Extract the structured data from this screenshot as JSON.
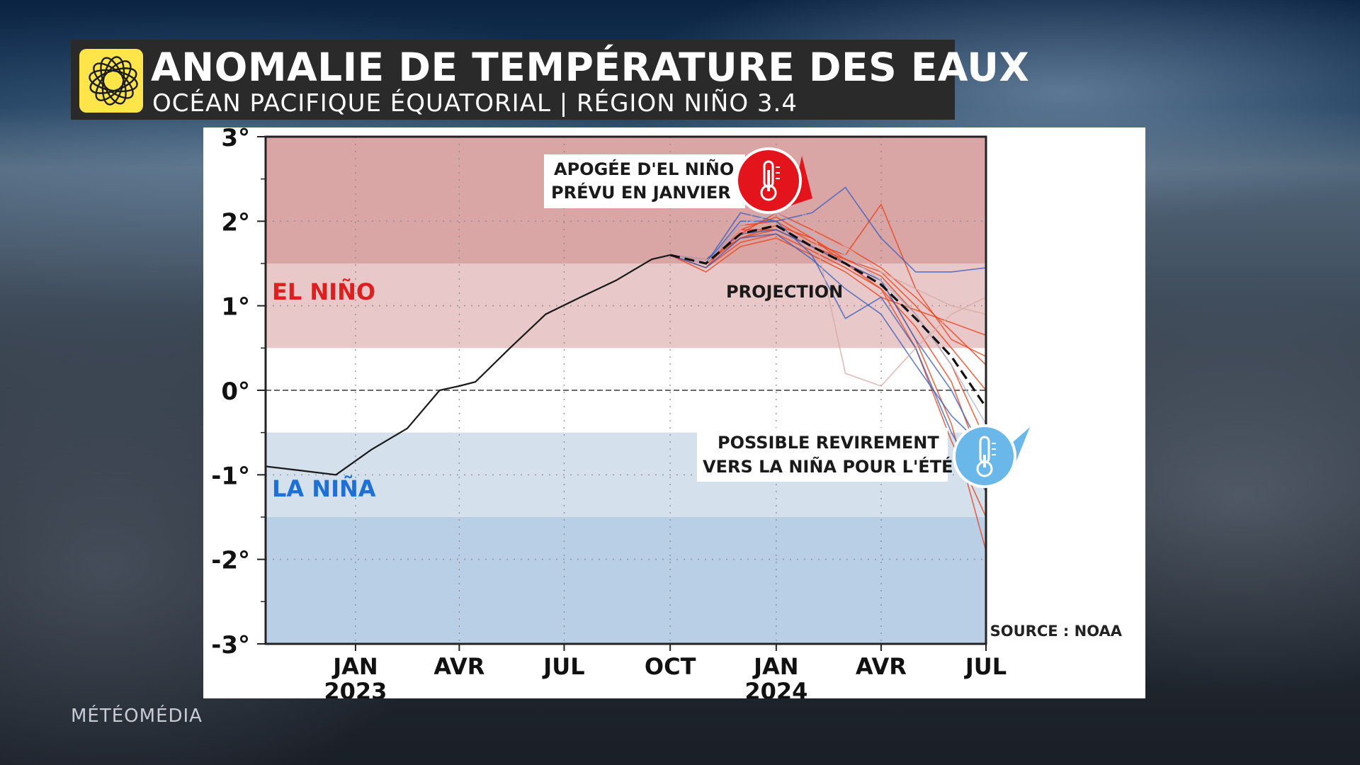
{
  "header": {
    "title": "ANOMALIE DE TEMPÉRATURE DES EAUX",
    "subtitle": "OCÉAN PACIFIQUE ÉQUATORIAL | RÉGION NIÑO 3.4"
  },
  "brand": "MÉTÉOMÉDIA",
  "annotations": {
    "peak_line1": "APOGÉE D'EL NIÑO",
    "peak_line2": "PRÉVU EN JANVIER",
    "shift_line1": "POSSIBLE REVIREMENT",
    "shift_line2": "VERS LA NIÑA POUR L'ÉTÉ"
  },
  "chart_data": {
    "type": "line",
    "ylabel": "",
    "xlabel": "",
    "ylim": [
      -3,
      3
    ],
    "xlim": [
      "2022-10-15",
      "2024-07-01"
    ],
    "yticks": [
      {
        "value": 3,
        "label": "3°"
      },
      {
        "value": 2,
        "label": "2°"
      },
      {
        "value": 1,
        "label": "1°"
      },
      {
        "value": 0,
        "label": "0°"
      },
      {
        "value": -1,
        "label": "-1°"
      },
      {
        "value": -2,
        "label": "-2°"
      },
      {
        "value": -3,
        "label": "-3°"
      }
    ],
    "xticks": [
      {
        "date": "2023-01-01",
        "label": "JAN",
        "year": "2023"
      },
      {
        "date": "2023-04-01",
        "label": "AVR",
        "year": ""
      },
      {
        "date": "2023-07-01",
        "label": "JUL",
        "year": ""
      },
      {
        "date": "2023-10-01",
        "label": "OCT",
        "year": ""
      },
      {
        "date": "2024-01-01",
        "label": "JAN",
        "year": "2024"
      },
      {
        "date": "2024-04-01",
        "label": "AVR",
        "year": ""
      },
      {
        "date": "2024-07-01",
        "label": "JUL",
        "year": ""
      }
    ],
    "bands": [
      {
        "label": "EL NIÑO",
        "from": 0.5,
        "to": 3,
        "color": "#e8c8c8",
        "label_color": "#dd1f1f",
        "strong_from": 1.5,
        "strong_color": "#d9a5a5"
      },
      {
        "label": "LA NIÑA",
        "from": -3,
        "to": -0.5,
        "color": "#d4e0ec",
        "label_color": "#1e6fd6",
        "strong_to": -1.5,
        "strong_color": "#b8cfe6"
      }
    ],
    "projection_label": "PROJECTION",
    "source": "SOURCE : NOAA",
    "observed": {
      "x": [
        "2022-10-15",
        "2022-11-15",
        "2022-12-15",
        "2023-01-15",
        "2023-02-15",
        "2023-03-15",
        "2023-04-01",
        "2023-04-15",
        "2023-05-15",
        "2023-06-15",
        "2023-07-15",
        "2023-08-15",
        "2023-09-15",
        "2023-10-01"
      ],
      "y": [
        -0.9,
        -0.95,
        -1.0,
        -0.7,
        -0.45,
        0.0,
        0.05,
        0.1,
        0.5,
        0.9,
        1.1,
        1.3,
        1.55,
        1.6
      ]
    },
    "ensemble_mean": {
      "x": [
        "2023-10-01",
        "2023-11-01",
        "2023-12-01",
        "2024-01-01",
        "2024-02-01",
        "2024-03-01",
        "2024-04-01",
        "2024-05-01",
        "2024-06-01",
        "2024-07-01"
      ],
      "y": [
        1.6,
        1.5,
        1.85,
        1.95,
        1.7,
        1.5,
        1.25,
        0.85,
        0.4,
        -0.2
      ]
    },
    "members": [
      {
        "color": "#e8431d",
        "x": [
          "2023-10-01",
          "2023-11-01",
          "2023-12-01",
          "2024-01-01",
          "2024-02-01",
          "2024-03-01",
          "2024-04-01",
          "2024-05-01",
          "2024-06-01",
          "2024-07-01"
        ],
        "y": [
          1.6,
          1.5,
          1.9,
          2.05,
          1.8,
          1.55,
          1.35,
          0.9,
          0.3,
          -0.6
        ]
      },
      {
        "color": "#e8431d",
        "x": [
          "2023-10-01",
          "2023-11-01",
          "2023-12-01",
          "2024-01-01",
          "2024-02-01",
          "2024-03-01",
          "2024-04-01",
          "2024-05-01",
          "2024-06-01",
          "2024-07-01"
        ],
        "y": [
          1.6,
          1.45,
          1.75,
          1.85,
          1.65,
          1.45,
          1.2,
          0.75,
          0.1,
          -1.0
        ]
      },
      {
        "color": "#e8431d",
        "x": [
          "2023-10-01",
          "2023-11-01",
          "2023-12-01",
          "2024-01-01",
          "2024-02-01",
          "2024-03-01",
          "2024-04-01",
          "2024-05-01",
          "2024-06-01",
          "2024-07-01"
        ],
        "y": [
          1.6,
          1.5,
          1.95,
          2.0,
          1.75,
          1.6,
          2.2,
          1.2,
          0.6,
          0.4
        ]
      },
      {
        "color": "#e8431d",
        "x": [
          "2023-10-01",
          "2023-11-01",
          "2023-12-01",
          "2024-01-01",
          "2024-02-01",
          "2024-03-01",
          "2024-04-01",
          "2024-05-01",
          "2024-06-01",
          "2024-07-01"
        ],
        "y": [
          1.6,
          1.55,
          1.8,
          1.9,
          1.7,
          1.5,
          1.3,
          0.6,
          -0.4,
          -1.9
        ]
      },
      {
        "color": "#e8431d",
        "x": [
          "2023-10-01",
          "2023-11-01",
          "2023-12-01",
          "2024-01-01",
          "2024-02-01",
          "2024-03-01",
          "2024-04-01",
          "2024-05-01",
          "2024-06-01",
          "2024-07-01"
        ],
        "y": [
          1.6,
          1.4,
          1.7,
          1.8,
          1.6,
          1.4,
          1.1,
          0.95,
          0.8,
          0.65
        ]
      },
      {
        "color": "#e8431d",
        "x": [
          "2023-10-01",
          "2023-11-01",
          "2023-12-01",
          "2024-01-01",
          "2024-02-01",
          "2024-03-01",
          "2024-04-01",
          "2024-05-01",
          "2024-06-01",
          "2024-07-01"
        ],
        "y": [
          1.6,
          1.5,
          1.85,
          2.1,
          1.9,
          1.7,
          1.45,
          1.1,
          0.7,
          0.3
        ]
      },
      {
        "color": "#e8431d",
        "x": [
          "2023-10-01",
          "2023-11-01",
          "2023-12-01",
          "2024-01-01",
          "2024-02-01",
          "2024-03-01",
          "2024-04-01",
          "2024-05-01",
          "2024-06-01",
          "2024-07-01"
        ],
        "y": [
          1.6,
          1.5,
          1.8,
          1.95,
          1.8,
          1.5,
          1.2,
          0.5,
          -0.6,
          -1.5
        ]
      },
      {
        "color": "#e8431d",
        "x": [
          "2023-10-01",
          "2023-11-01",
          "2023-12-01",
          "2024-01-01",
          "2024-02-01",
          "2024-03-01",
          "2024-04-01",
          "2024-05-01",
          "2024-06-01",
          "2024-07-01"
        ],
        "y": [
          1.6,
          1.45,
          1.9,
          1.9,
          1.7,
          1.55,
          1.4,
          1.0,
          0.5,
          0.0
        ]
      },
      {
        "color": "#3a5fbf",
        "x": [
          "2023-10-01",
          "2023-11-01",
          "2023-12-01",
          "2024-01-01",
          "2024-02-01",
          "2024-03-01",
          "2024-04-01",
          "2024-05-01",
          "2024-06-01",
          "2024-07-01"
        ],
        "y": [
          1.6,
          1.5,
          2.0,
          2.0,
          2.1,
          2.4,
          1.8,
          1.4,
          1.4,
          1.45
        ]
      },
      {
        "color": "#3a5fbf",
        "x": [
          "2023-10-01",
          "2023-11-01",
          "2023-12-01",
          "2024-01-01",
          "2024-02-01",
          "2024-03-01",
          "2024-04-01",
          "2024-05-01",
          "2024-06-01",
          "2024-07-01"
        ],
        "y": [
          1.6,
          1.5,
          2.1,
          2.0,
          1.6,
          0.85,
          1.1,
          0.5,
          -0.5,
          -1.2
        ]
      },
      {
        "color": "#3a5fbf",
        "x": [
          "2023-10-01",
          "2023-11-01",
          "2023-12-01",
          "2024-01-01",
          "2024-02-01",
          "2024-03-01",
          "2024-04-01",
          "2024-05-01",
          "2024-06-01",
          "2024-07-01"
        ],
        "y": [
          1.6,
          1.55,
          1.85,
          1.9,
          1.7,
          1.5,
          1.3,
          0.6,
          0.0,
          -0.8
        ]
      },
      {
        "color": "#3a5fbf",
        "x": [
          "2023-10-01",
          "2023-11-01",
          "2023-12-01",
          "2024-01-01",
          "2024-02-01",
          "2024-03-01",
          "2024-04-01",
          "2024-05-01",
          "2024-06-01",
          "2024-07-01"
        ],
        "y": [
          1.6,
          1.45,
          1.8,
          1.85,
          1.55,
          1.2,
          0.9,
          0.3,
          -0.3,
          -0.7
        ]
      },
      {
        "color": "#d8aaa5",
        "x": [
          "2023-10-01",
          "2023-11-01",
          "2023-12-01",
          "2024-01-01",
          "2024-02-01",
          "2024-03-01",
          "2024-04-01",
          "2024-05-01",
          "2024-06-01",
          "2024-07-01"
        ],
        "y": [
          1.6,
          1.5,
          1.9,
          2.45,
          2.0,
          0.2,
          0.05,
          0.5,
          0.9,
          1.1
        ]
      },
      {
        "color": "#d8aaa5",
        "x": [
          "2023-10-01",
          "2023-11-01",
          "2023-12-01",
          "2024-01-01",
          "2024-02-01",
          "2024-03-01",
          "2024-04-01",
          "2024-05-01",
          "2024-06-01",
          "2024-07-01"
        ],
        "y": [
          1.6,
          1.55,
          2.2,
          2.3,
          2.0,
          1.7,
          1.4,
          1.2,
          1.0,
          0.9
        ]
      },
      {
        "color": "#a9b8d8",
        "x": [
          "2023-10-01",
          "2023-11-01",
          "2023-12-01",
          "2024-01-01",
          "2024-02-01",
          "2024-03-01",
          "2024-04-01",
          "2024-05-01",
          "2024-06-01",
          "2024-07-01"
        ],
        "y": [
          1.6,
          1.5,
          1.95,
          2.1,
          1.85,
          1.6,
          1.3,
          0.9,
          0.3,
          -0.4
        ]
      }
    ]
  }
}
